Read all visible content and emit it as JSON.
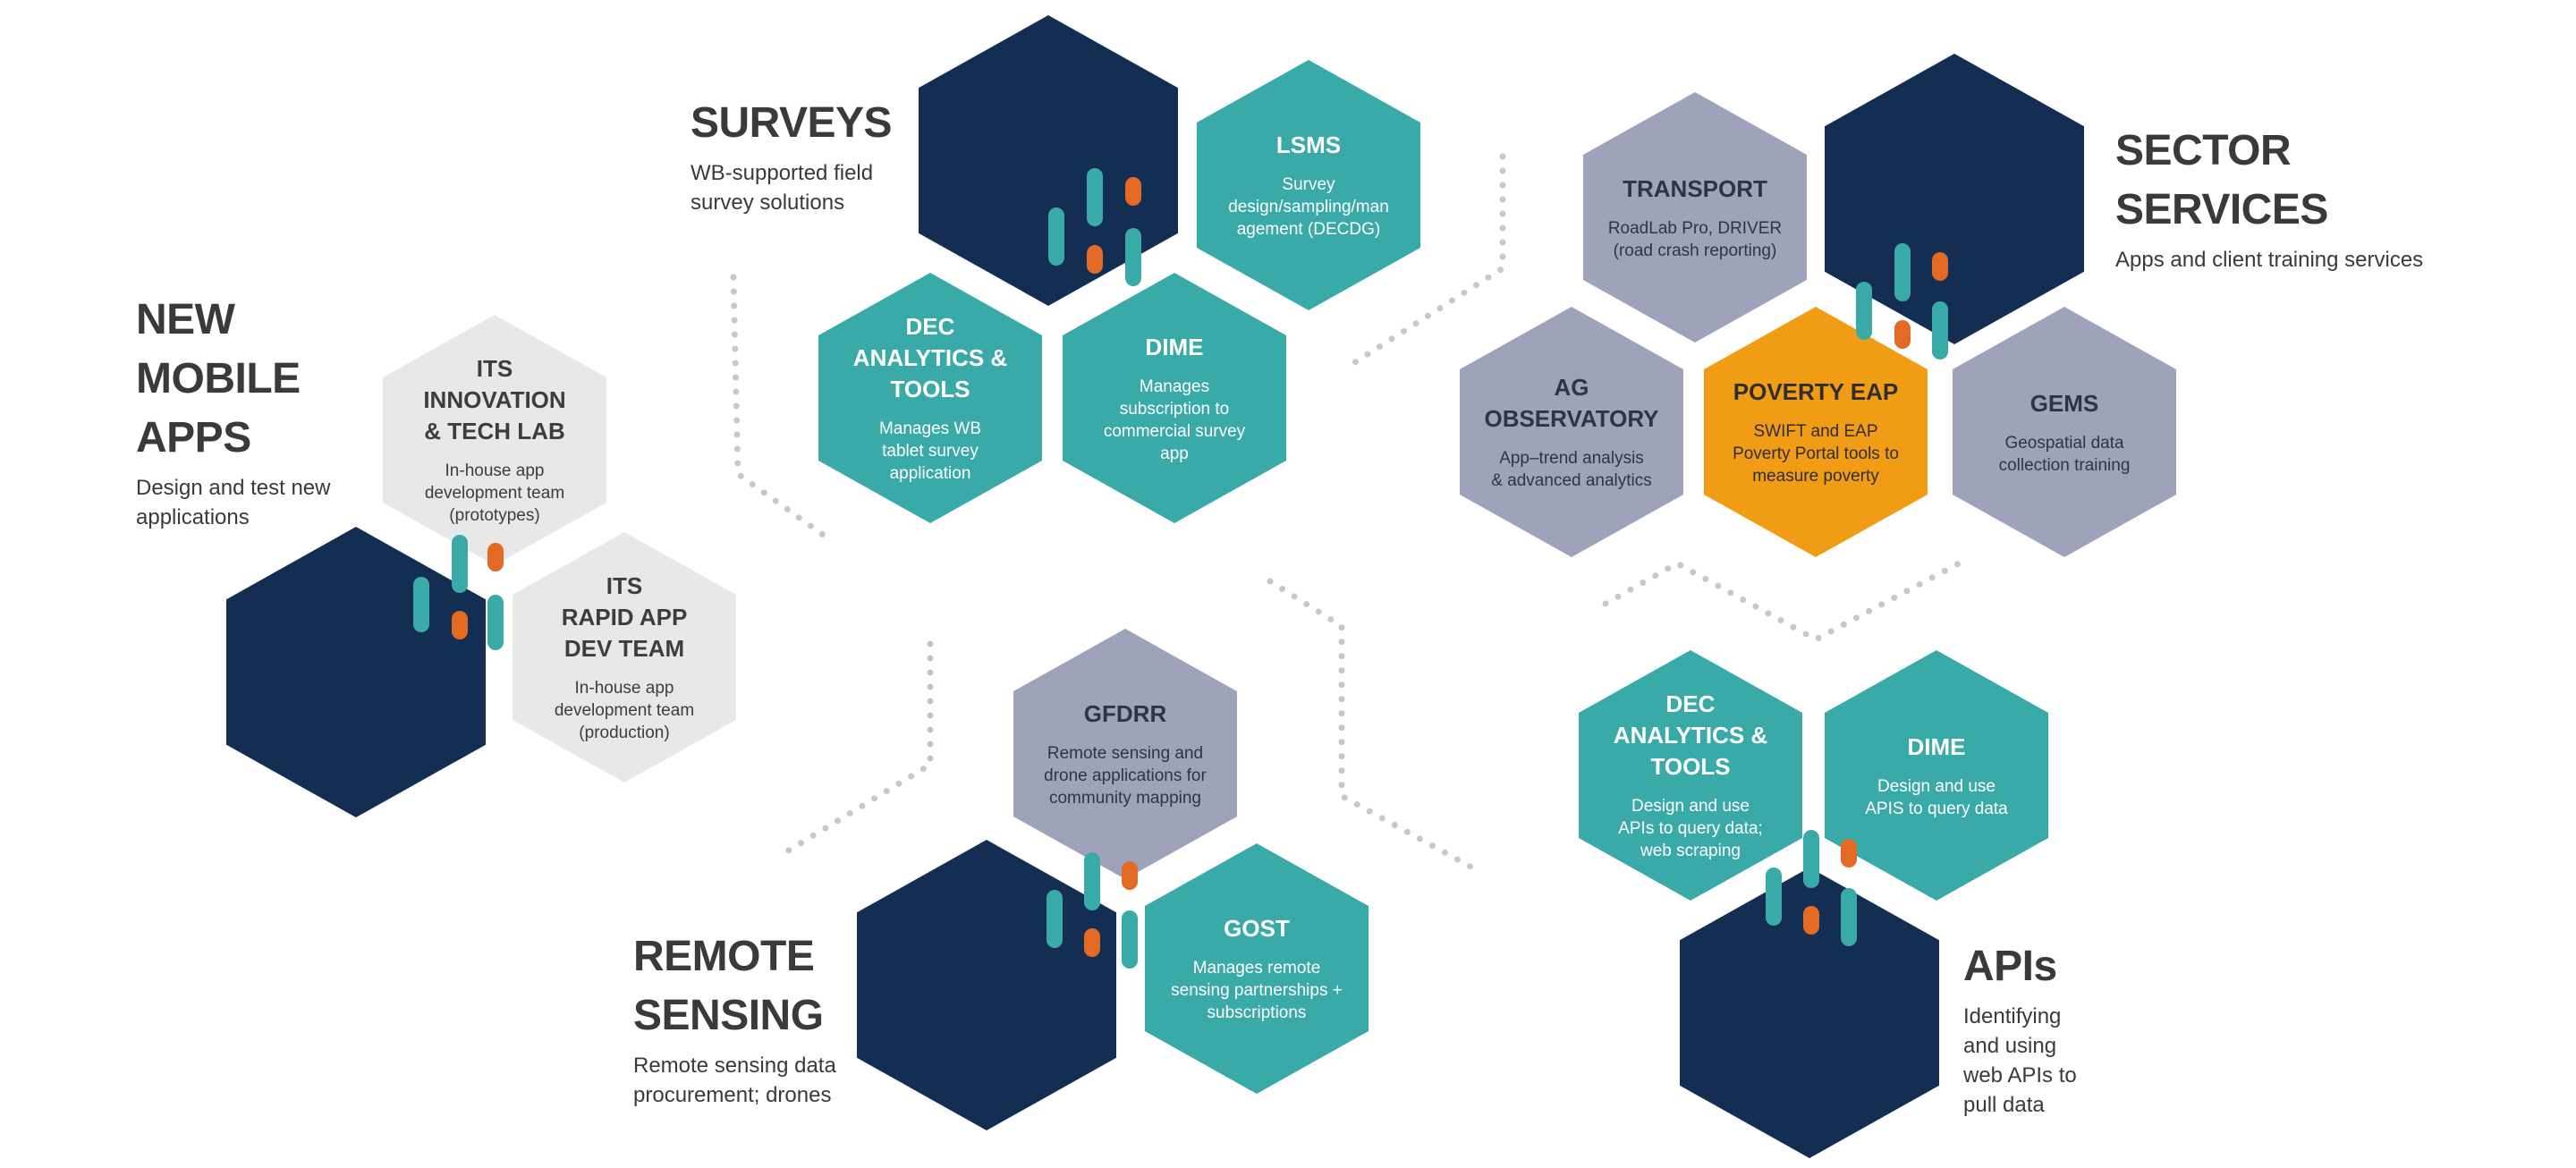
{
  "colors": {
    "navy": "#142e53",
    "teal": "#3aaaa9",
    "slate": "#9ea3bb",
    "light_gray": "#e8e8e8",
    "orange_hex": "#f19c15",
    "accent_orange": "#e36a24",
    "dots": "#c8c8c8"
  },
  "sections": {
    "mobile": {
      "title": "NEW\nMOBILE\nAPPS",
      "desc": "Design and test new\napplications"
    },
    "surveys": {
      "title": "SURVEYS",
      "desc": "WB-supported field\nsurvey solutions"
    },
    "sector": {
      "title": "SECTOR\nSERVICES",
      "desc": "Apps and client training services"
    },
    "remote": {
      "title": "REMOTE\nSENSING",
      "desc": "Remote sensing data\nprocurement; drones"
    },
    "apis": {
      "title": "APIs",
      "desc": "Identifying\nand using\nweb APIs to\npull data"
    }
  },
  "hexes": {
    "its_lab": {
      "title": "ITS\nINNOVATION\n& TECH LAB",
      "desc": "In-house app\ndevelopment team\n(prototypes)"
    },
    "its_rapid": {
      "title": "ITS\nRAPID APP\nDEV TEAM",
      "desc": "In-house app\ndevelopment team\n(production)"
    },
    "lsms": {
      "title": "LSMS",
      "desc": "Survey\ndesign/sampling/man\nagement (DECDG)"
    },
    "dec_surveys": {
      "title": "DEC\nANALYTICS &\nTOOLS",
      "desc": "Manages WB\ntablet survey\napplication"
    },
    "dime_surveys": {
      "title": "DIME",
      "desc": "Manages\nsubscription to\ncommercial survey\napp"
    },
    "transport": {
      "title": "TRANSPORT",
      "desc": "RoadLab Pro, DRIVER\n(road crash reporting)"
    },
    "ag_obs": {
      "title": "AG\nOBSERVATORY",
      "desc": "App–trend analysis\n& advanced analytics"
    },
    "poverty": {
      "title": "POVERTY EAP",
      "desc": "SWIFT and EAP\nPoverty Portal tools to\nmeasure poverty"
    },
    "gems": {
      "title": "GEMS",
      "desc": "Geospatial data\ncollection training"
    },
    "gfdrr": {
      "title": "GFDRR",
      "desc": "Remote sensing and\ndrone applications for\ncommunity mapping"
    },
    "gost": {
      "title": "GOST",
      "desc": "Manages remote\nsensing partnerships +\nsubscriptions"
    },
    "dec_apis": {
      "title": "DEC\nANALYTICS &\nTOOLS",
      "desc": "Design and use\nAPIs to query data;\nweb scraping"
    },
    "dime_apis": {
      "title": "DIME",
      "desc": "Design and use\nAPIS to query data"
    }
  }
}
